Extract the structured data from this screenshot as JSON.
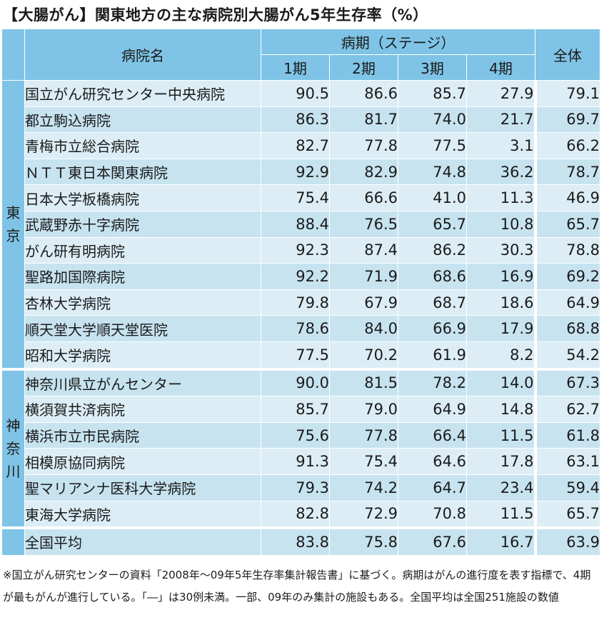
{
  "title": "【大腸がん】関東地方の主な病院別大腸がん5年生存率（%）",
  "table": {
    "header_hospital": "病院名",
    "header_stage_group": "病期（ステージ）",
    "stage_labels": [
      "1期",
      "2期",
      "3期",
      "4期"
    ],
    "header_total": "全体",
    "regions": [
      {
        "name_chars": [
          "東",
          "京"
        ],
        "rows": [
          {
            "name": "国立がん研究センター中央病院",
            "values": [
              "90.5",
              "86.6",
              "85.7",
              "27.9",
              "79.1"
            ]
          },
          {
            "name": "都立駒込病院",
            "values": [
              "86.3",
              "81.7",
              "74.0",
              "21.7",
              "69.7"
            ]
          },
          {
            "name": "青梅市立総合病院",
            "values": [
              "82.7",
              "77.8",
              "77.5",
              "3.1",
              "66.2"
            ]
          },
          {
            "name": "ＮＴＴ東日本関東病院",
            "values": [
              "92.9",
              "82.9",
              "74.8",
              "36.2",
              "78.7"
            ]
          },
          {
            "name": "日本大学板橋病院",
            "values": [
              "75.4",
              "66.6",
              "41.0",
              "11.3",
              "46.9"
            ]
          },
          {
            "name": "武蔵野赤十字病院",
            "values": [
              "88.4",
              "76.5",
              "65.7",
              "10.8",
              "65.7"
            ]
          },
          {
            "name": "がん研有明病院",
            "values": [
              "92.3",
              "87.4",
              "86.2",
              "30.3",
              "78.8"
            ]
          },
          {
            "name": "聖路加国際病院",
            "values": [
              "92.2",
              "71.9",
              "68.6",
              "16.9",
              "69.2"
            ]
          },
          {
            "name": "杏林大学病院",
            "values": [
              "79.8",
              "67.9",
              "68.7",
              "18.6",
              "64.9"
            ]
          },
          {
            "name": "順天堂大学順天堂医院",
            "values": [
              "78.6",
              "84.0",
              "66.9",
              "17.9",
              "68.8"
            ]
          },
          {
            "name": "昭和大学病院",
            "values": [
              "77.5",
              "70.2",
              "61.9",
              "8.2",
              "54.2"
            ]
          }
        ]
      },
      {
        "name_chars": [
          "神",
          "奈",
          "川"
        ],
        "rows": [
          {
            "name": "神奈川県立がんセンター",
            "values": [
              "90.0",
              "81.5",
              "78.2",
              "14.0",
              "67.3"
            ]
          },
          {
            "name": "横須賀共済病院",
            "values": [
              "85.7",
              "79.0",
              "64.9",
              "14.8",
              "62.7"
            ]
          },
          {
            "name": "横浜市立市民病院",
            "values": [
              "75.6",
              "77.8",
              "66.4",
              "11.5",
              "61.8"
            ]
          },
          {
            "name": "相模原協同病院",
            "values": [
              "91.3",
              "75.4",
              "64.6",
              "17.8",
              "63.1"
            ]
          },
          {
            "name": "聖マリアンナ医科大学病院",
            "values": [
              "79.3",
              "74.2",
              "64.7",
              "23.4",
              "59.4"
            ]
          },
          {
            "name": "東海大学病院",
            "values": [
              "82.8",
              "72.9",
              "70.8",
              "11.5",
              "65.7"
            ]
          }
        ]
      }
    ],
    "national_average": {
      "name": "全国平均",
      "values": [
        "83.8",
        "75.8",
        "67.6",
        "16.7",
        "63.9"
      ]
    }
  },
  "note": "※国立がん研究センターの資料「2008年〜09年5年生存率集計報告書」に基づく。病期はがんの進行度を表す指標で、4期が最もがんが進行している。「―」は30例未満。一部、09年のみ集計の施設もある。全国平均は全国251施設の数値",
  "colors": {
    "header_bg": "#7fc4e6",
    "row_light": "#dcedf5",
    "row_mid": "#c7e3f0"
  }
}
